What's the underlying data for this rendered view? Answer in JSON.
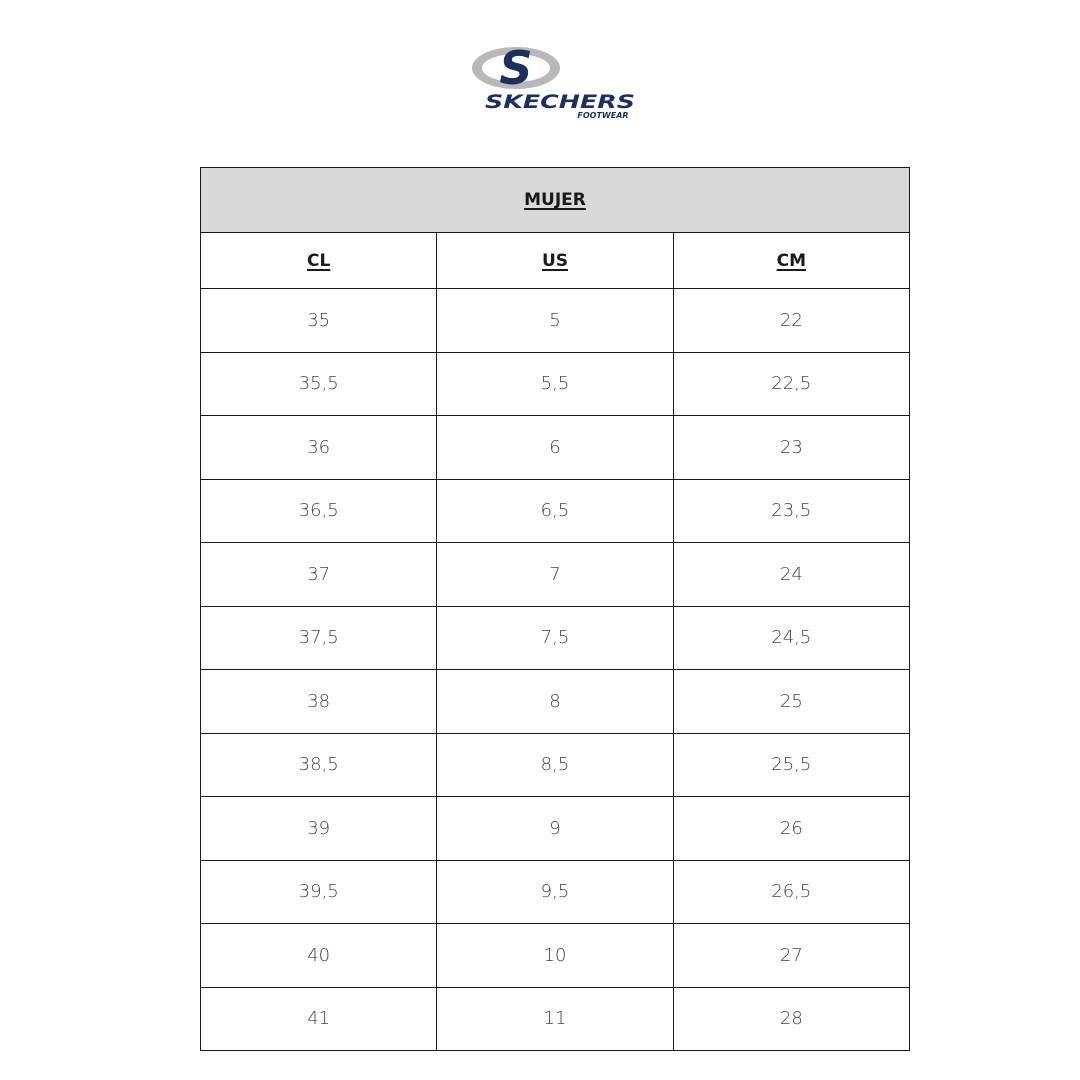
{
  "logo": {
    "brand": "SKECHERS",
    "sub": "FOOTWEAR",
    "colors": {
      "navy": "#1c2f5e",
      "gray": "#b8b8b8"
    }
  },
  "table": {
    "title": "MUJER",
    "headers": [
      "CL",
      "US",
      "CM"
    ],
    "rows": [
      [
        "35",
        "5",
        "22"
      ],
      [
        "35,5",
        "5,5",
        "22,5"
      ],
      [
        "36",
        "6",
        "23"
      ],
      [
        "36,5",
        "6,5",
        "23,5"
      ],
      [
        "37",
        "7",
        "24"
      ],
      [
        "37,5",
        "7,5",
        "24,5"
      ],
      [
        "38",
        "8",
        "25"
      ],
      [
        "38,5",
        "8,5",
        "25,5"
      ],
      [
        "39",
        "9",
        "26"
      ],
      [
        "39,5",
        "9,5",
        "26,5"
      ],
      [
        "40",
        "10",
        "27"
      ],
      [
        "41",
        "11",
        "28"
      ]
    ]
  }
}
